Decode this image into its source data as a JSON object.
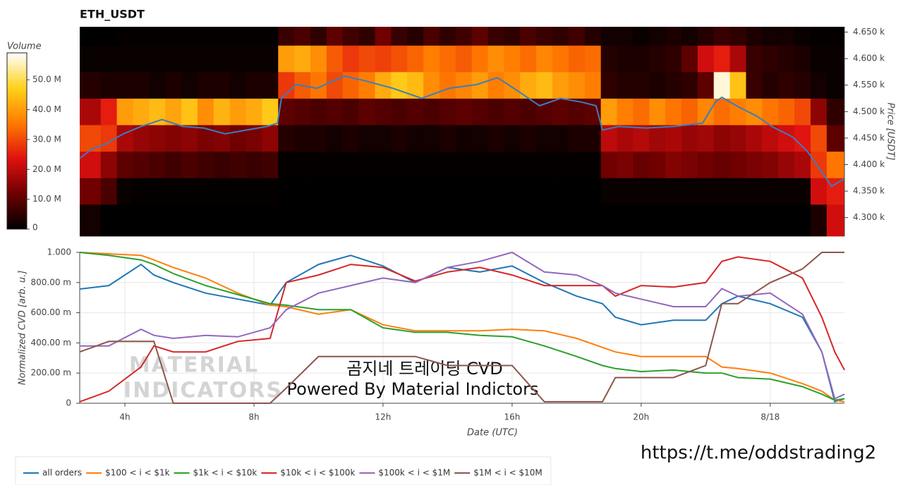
{
  "chart_data": [
    {
      "type": "heatmap",
      "title": "ETH_USDT",
      "y_label": "Price [USDT]",
      "colorbar_label": "Volume",
      "xlim": [
        2.6,
        26.3
      ],
      "ylim": [
        4265,
        4660
      ],
      "yticks": [
        {
          "value": 4300,
          "label": "4.300 k"
        },
        {
          "value": 4350,
          "label": "4.350 k"
        },
        {
          "value": 4400,
          "label": "4.400 k"
        },
        {
          "value": 4450,
          "label": "4.450 k"
        },
        {
          "value": 4500,
          "label": "4.500 k"
        },
        {
          "value": 4550,
          "label": "4.550 k"
        },
        {
          "value": 4600,
          "label": "4.600 k"
        },
        {
          "value": 4650,
          "label": "4.650 k"
        }
      ],
      "clim": [
        0,
        59
      ],
      "cticks": [
        0,
        {
          "value": 10,
          "label": "10.0 M"
        },
        {
          "value": 20,
          "label": "20.0 M"
        },
        {
          "value": 30,
          "label": "30.0 M"
        },
        {
          "value": 40,
          "label": "40.0 M"
        },
        {
          "value": 50,
          "label": "50.0 M"
        }
      ],
      "colormap": [
        "#000000",
        "#6e0000",
        "#e01010",
        "#ff7a00",
        "#ffd21a",
        "#ffffff"
      ],
      "xbins": [
        2.6,
        3.25,
        3.75,
        4.25,
        4.75,
        5.25,
        5.75,
        6.25,
        6.75,
        7.25,
        7.75,
        8.25,
        8.75,
        9.25,
        9.75,
        10.25,
        10.75,
        11.25,
        11.75,
        12.25,
        12.75,
        13.25,
        13.75,
        14.25,
        14.75,
        15.25,
        15.75,
        16.25,
        16.75,
        17.25,
        17.75,
        18.25,
        18.75,
        19.25,
        19.75,
        20.25,
        20.75,
        21.25,
        21.75,
        22.25,
        22.75,
        23.25,
        23.75,
        24.25,
        24.75,
        25.25,
        25.75,
        26.3
      ],
      "ybins": [
        4265,
        4325,
        4375,
        4425,
        4475,
        4525,
        4575,
        4625,
        4660
      ],
      "values": [
        [
          2,
          0,
          0,
          0,
          0,
          0,
          0,
          0,
          0,
          0,
          0,
          0,
          0,
          0,
          0,
          0,
          0,
          0,
          0,
          0,
          0,
          0,
          0,
          0,
          0,
          0,
          0,
          0,
          0,
          0,
          0,
          0,
          0,
          0,
          0,
          0,
          0,
          0,
          0,
          0,
          0,
          0,
          0,
          0,
          0,
          3,
          22
        ],
        [
          12,
          8,
          1,
          0.5,
          0.5,
          0.5,
          0.5,
          0.5,
          0.5,
          0.5,
          0.5,
          0.5,
          0,
          0,
          0,
          0,
          0,
          0,
          0,
          0,
          0,
          0,
          0,
          0,
          0,
          0,
          0,
          0,
          0,
          0,
          0,
          0,
          1,
          1,
          1,
          1,
          1,
          1,
          1,
          1,
          1,
          1,
          1,
          1,
          1,
          22,
          25
        ],
        [
          22,
          15,
          10,
          9,
          8,
          7,
          8,
          7,
          6,
          7,
          6,
          7,
          0.5,
          0.5,
          0.5,
          0.5,
          0.5,
          0.5,
          0.5,
          0.5,
          0.5,
          0.5,
          0.5,
          0.5,
          0.5,
          0.5,
          0.5,
          0.5,
          0.5,
          0.5,
          0.5,
          0.5,
          12,
          13,
          11,
          12,
          14,
          13,
          12,
          11,
          12,
          13,
          14,
          16,
          18,
          28,
          35
        ],
        [
          30,
          28,
          18,
          16,
          15,
          14,
          15,
          13,
          14,
          12,
          13,
          15,
          4,
          3,
          3,
          2,
          3,
          2,
          2,
          3,
          2,
          2,
          3,
          2,
          2,
          3,
          2,
          3,
          2,
          2,
          3,
          3,
          20,
          18,
          19,
          17,
          18,
          16,
          17,
          15,
          16,
          18,
          20,
          22,
          24,
          30,
          10
        ],
        [
          18,
          25,
          40,
          42,
          44,
          41,
          45,
          38,
          43,
          40,
          42,
          46,
          10,
          9,
          8,
          9,
          8,
          10,
          9,
          8,
          9,
          8,
          9,
          10,
          9,
          8,
          9,
          8,
          9,
          10,
          9,
          10,
          40,
          36,
          34,
          38,
          35,
          33,
          37,
          34,
          36,
          38,
          35,
          33,
          30,
          15,
          5
        ],
        [
          4,
          3,
          3,
          3,
          2,
          3,
          2,
          3,
          3,
          2,
          3,
          3,
          28,
          32,
          35,
          30,
          33,
          36,
          42,
          46,
          44,
          38,
          35,
          37,
          40,
          36,
          38,
          42,
          44,
          40,
          38,
          36,
          5,
          4,
          4,
          3,
          4,
          5,
          10,
          57,
          45,
          6,
          4,
          5,
          4,
          2,
          1
        ],
        [
          1,
          1,
          1,
          1,
          1,
          1,
          1,
          1,
          1,
          1,
          1,
          1,
          40,
          42,
          38,
          32,
          28,
          30,
          29,
          31,
          33,
          36,
          34,
          32,
          35,
          38,
          36,
          34,
          37,
          35,
          33,
          34,
          4,
          3,
          3,
          4,
          5,
          10,
          22,
          25,
          18,
          6,
          5,
          4,
          3,
          1,
          1
        ],
        [
          0,
          0,
          0.5,
          0.5,
          0.5,
          0.5,
          0.5,
          0.5,
          0.5,
          0.5,
          0.5,
          0.5,
          6,
          8,
          5,
          10,
          7,
          5,
          12,
          6,
          4,
          8,
          5,
          7,
          10,
          6,
          5,
          8,
          6,
          5,
          7,
          4,
          2,
          2,
          1,
          2,
          3,
          2,
          4,
          6,
          5,
          3,
          2,
          2,
          1,
          0.5,
          0.5
        ]
      ],
      "line": {
        "color": "#3a7ebf",
        "x": [
          2.6,
          2.97,
          3.4,
          3.95,
          4.5,
          5.15,
          5.8,
          6.45,
          7.1,
          7.75,
          8.4,
          8.73,
          8.85,
          9.3,
          9.95,
          10.8,
          11.45,
          12.3,
          13.2,
          14.05,
          14.9,
          15.55,
          16.2,
          16.85,
          17.5,
          18.15,
          18.6,
          18.8,
          19.3,
          20.15,
          21.0,
          21.9,
          22.3,
          22.5,
          22.95,
          23.6,
          24.05,
          24.7,
          25.15,
          25.6,
          25.9,
          26.3
        ],
        "values": [
          4412,
          4429,
          4439,
          4458,
          4472,
          4485,
          4472,
          4469,
          4458,
          4465,
          4472,
          4478,
          4525,
          4551,
          4544,
          4567,
          4558,
          4544,
          4525,
          4544,
          4551,
          4564,
          4538,
          4511,
          4525,
          4518,
          4511,
          4465,
          4472,
          4469,
          4472,
          4478,
          4518,
          4527,
          4511,
          4491,
          4472,
          4452,
          4425,
          4386,
          4359,
          4373
        ]
      }
    },
    {
      "type": "line",
      "x_label": "Date (UTC)",
      "y_label": "Normalized CVD [arb. u.]",
      "xlim": [
        2.6,
        26.3
      ],
      "ylim": [
        0,
        1.0
      ],
      "xticks": [
        {
          "value": 4,
          "label": "4h"
        },
        {
          "value": 8,
          "label": "8h"
        },
        {
          "value": 12,
          "label": "12h"
        },
        {
          "value": 16,
          "label": "16h"
        },
        {
          "value": 20,
          "label": "20h"
        },
        {
          "value": 24,
          "label": "8/18"
        }
      ],
      "yticks": [
        0,
        {
          "value": 0.2,
          "label": "200.00 m"
        },
        {
          "value": 0.4,
          "label": "400.00 m"
        },
        {
          "value": 0.6,
          "label": "600.00 m"
        },
        {
          "value": 0.8,
          "label": "800.00 m"
        },
        {
          "value": 1.0,
          "label": "1.000"
        }
      ],
      "grid": true,
      "legend": "bottom-left",
      "x": [
        2.6,
        3.5,
        4.5,
        4.9,
        5.5,
        6.5,
        7.5,
        8.5,
        9,
        10,
        11,
        12,
        13,
        14,
        15,
        16,
        17,
        18,
        18.8,
        19.2,
        20,
        21,
        22,
        22.5,
        23,
        24,
        25,
        25.6,
        26,
        26.3
      ],
      "series": [
        {
          "name": "all orders",
          "color": "#1f77b4",
          "values": [
            0.757,
            0.78,
            0.92,
            0.85,
            0.8,
            0.73,
            0.69,
            0.65,
            0.8,
            0.92,
            0.98,
            0.91,
            0.8,
            0.9,
            0.87,
            0.91,
            0.8,
            0.71,
            0.66,
            0.57,
            0.52,
            0.55,
            0.55,
            0.66,
            0.71,
            0.66,
            0.57,
            0.34,
            0.01,
            0.03
          ]
        },
        {
          "name": "$100 < i < $1k",
          "color": "#ff7f0e",
          "values": [
            1.0,
            0.99,
            0.98,
            0.95,
            0.9,
            0.83,
            0.73,
            0.65,
            0.64,
            0.59,
            0.62,
            0.52,
            0.48,
            0.48,
            0.48,
            0.49,
            0.48,
            0.43,
            0.37,
            0.34,
            0.31,
            0.31,
            0.31,
            0.24,
            0.23,
            0.2,
            0.13,
            0.08,
            0.02,
            0.01
          ]
        },
        {
          "name": "$1k < i < $10k",
          "color": "#2ca02c",
          "values": [
            1.0,
            0.98,
            0.95,
            0.92,
            0.86,
            0.78,
            0.72,
            0.66,
            0.65,
            0.62,
            0.62,
            0.5,
            0.47,
            0.47,
            0.45,
            0.44,
            0.38,
            0.31,
            0.25,
            0.23,
            0.21,
            0.22,
            0.2,
            0.2,
            0.17,
            0.16,
            0.11,
            0.06,
            0.02,
            0.03
          ]
        },
        {
          "name": "$10k < i < $100k",
          "color": "#d62728",
          "values": [
            0.01,
            0.08,
            0.24,
            0.38,
            0.34,
            0.34,
            0.41,
            0.43,
            0.8,
            0.85,
            0.92,
            0.9,
            0.81,
            0.87,
            0.9,
            0.85,
            0.78,
            0.78,
            0.78,
            0.71,
            0.78,
            0.77,
            0.8,
            0.94,
            0.97,
            0.94,
            0.83,
            0.57,
            0.34,
            0.22
          ]
        },
        {
          "name": "$100k < i < $1M",
          "color": "#9467bd",
          "values": [
            0.38,
            0.38,
            0.49,
            0.45,
            0.43,
            0.45,
            0.44,
            0.5,
            0.62,
            0.73,
            0.78,
            0.83,
            0.8,
            0.9,
            0.94,
            1.0,
            0.87,
            0.85,
            0.78,
            0.73,
            0.69,
            0.64,
            0.64,
            0.76,
            0.71,
            0.73,
            0.59,
            0.34,
            0.03,
            0.06
          ]
        },
        {
          "name": "$1M < i < $10M",
          "color": "#8c564b",
          "values": [
            0.34,
            0.41,
            0.41,
            0.41,
            0,
            0,
            0,
            0,
            0.1,
            0.31,
            0.31,
            0.31,
            0.31,
            0.25,
            0.25,
            0.25,
            0.01,
            0.01,
            0.01,
            0.17,
            0.17,
            0.17,
            0.25,
            0.66,
            0.66,
            0.8,
            0.89,
            1.0,
            1.0,
            1.0
          ]
        }
      ],
      "annotations": [
        "MATERIAL",
        "INDICATORS",
        "곰지네 트레이딩 CVD",
        "Powered By Material Indictors",
        "https://t.me/oddstrading2"
      ]
    }
  ]
}
